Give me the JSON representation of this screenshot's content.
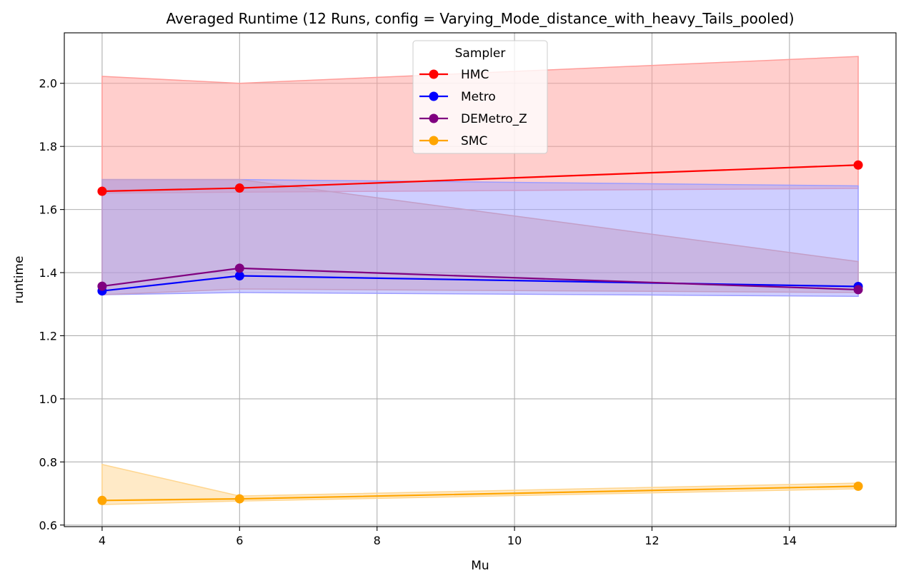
{
  "chart_data": {
    "type": "line",
    "title": "Averaged Runtime (12 Runs, config = Varying_Mode_distance_with_heavy_Tails_pooled)",
    "xlabel": "Mu",
    "ylabel": "runtime",
    "xlim": [
      3.45,
      15.55
    ],
    "ylim": [
      0.595,
      2.16
    ],
    "xticks": [
      4,
      6,
      8,
      10,
      12,
      14
    ],
    "yticks": [
      0.6,
      0.8,
      1.0,
      1.2,
      1.4,
      1.6,
      1.8,
      2.0
    ],
    "grid": true,
    "legend": {
      "title": "Sampler",
      "placement": "top-center"
    },
    "x": [
      4,
      6,
      15
    ],
    "series": [
      {
        "name": "HMC",
        "color": "#ff0000",
        "band_color": "#ff9d9a",
        "values": [
          1.658,
          1.668,
          1.741
        ],
        "lower": [
          1.652,
          1.655,
          1.667
        ],
        "upper": [
          2.022,
          2.0,
          2.085
        ]
      },
      {
        "name": "Metro",
        "color": "#0000ff",
        "band_color": "#9d9dff",
        "values": [
          1.342,
          1.39,
          1.356
        ],
        "lower": [
          1.33,
          1.337,
          1.325
        ],
        "upper": [
          1.695,
          1.695,
          1.675
        ]
      },
      {
        "name": "DEMetro_Z",
        "color": "#800080",
        "band_color": "#c39ec7",
        "values": [
          1.357,
          1.414,
          1.346
        ],
        "lower": [
          1.33,
          1.348,
          1.337
        ],
        "upper": [
          1.695,
          1.695,
          1.435
        ]
      },
      {
        "name": "SMC",
        "color": "#ffa500",
        "band_color": "#ffd68f",
        "values": [
          0.678,
          0.683,
          0.723
        ],
        "lower": [
          0.665,
          0.676,
          0.715
        ],
        "upper": [
          0.792,
          0.692,
          0.733
        ]
      }
    ]
  }
}
